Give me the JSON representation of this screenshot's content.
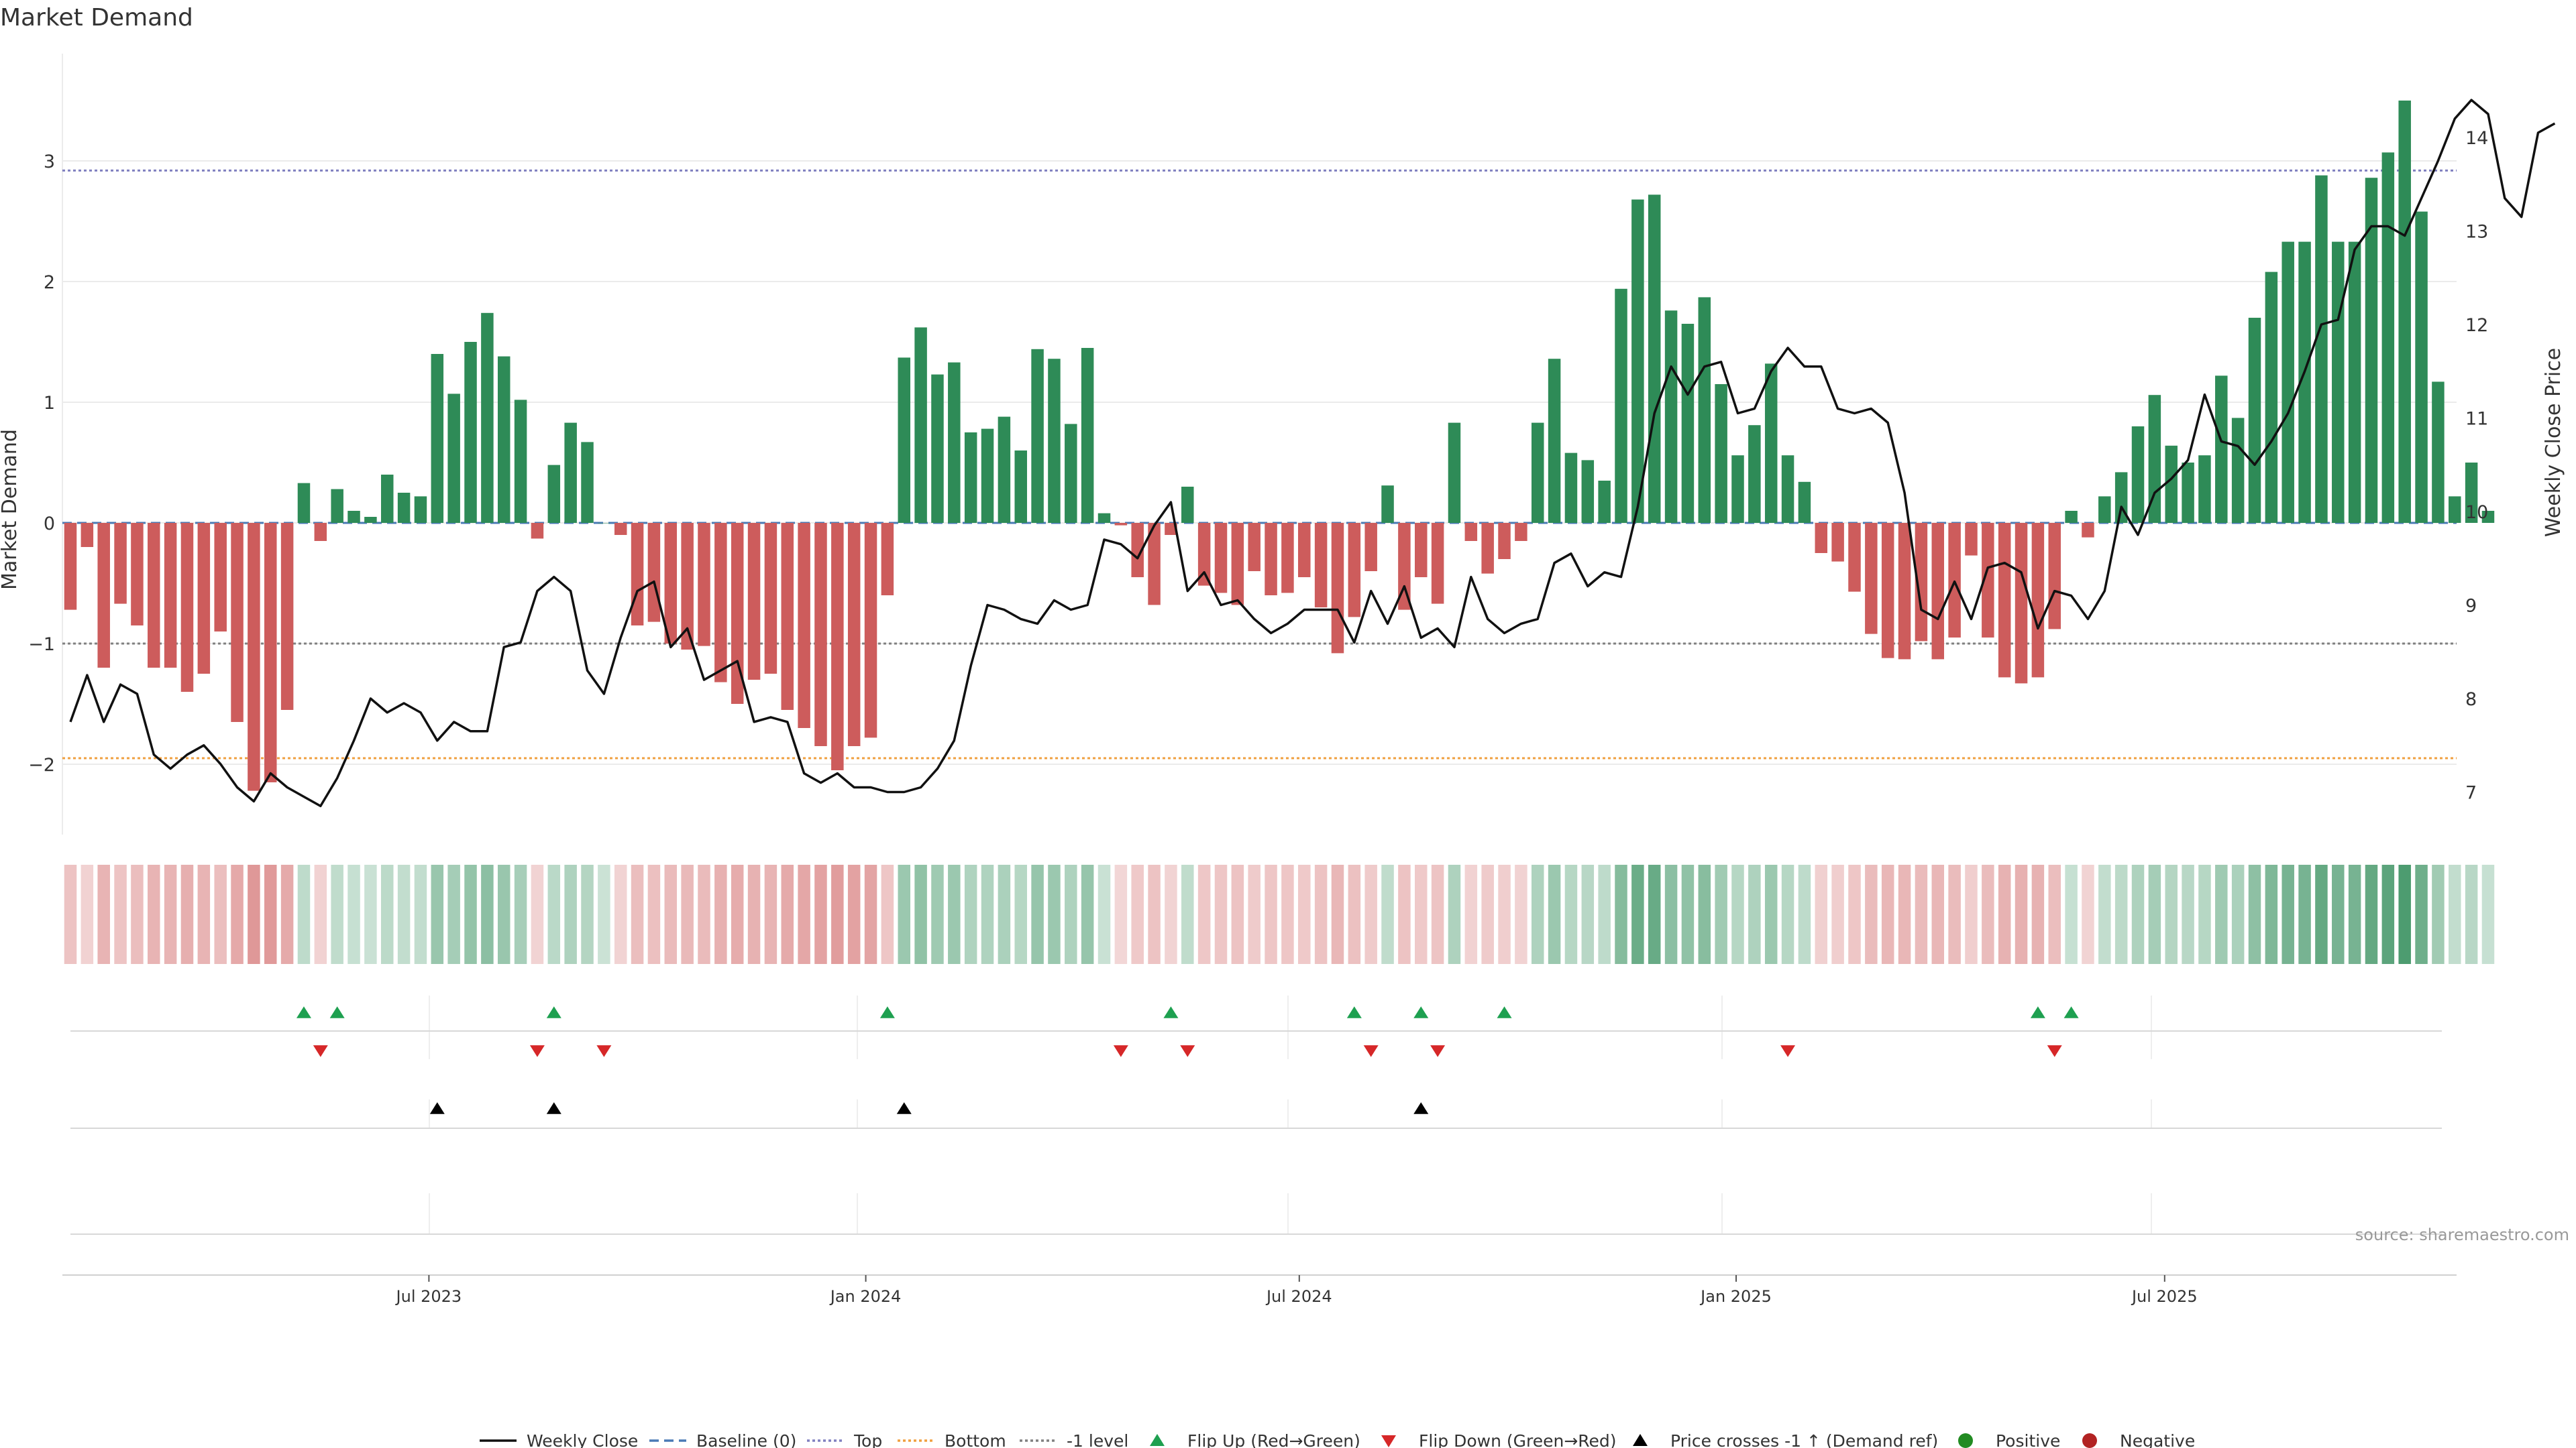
{
  "chart_data": {
    "type": "bar",
    "title": "Market Demand",
    "ylabel": "Market Demand",
    "y2label": "Weekly Close Price",
    "ylim": [
      -2.5,
      3.8
    ],
    "y2lim": [
      6.5,
      15.0
    ],
    "yticks": [
      "3",
      "2",
      "1",
      "0",
      "−1",
      "−2"
    ],
    "yticks_values": [
      3,
      2,
      1,
      0,
      -1,
      -2
    ],
    "y2ticks": [
      "14",
      "13",
      "12",
      "11",
      "10",
      "9",
      "8",
      "7"
    ],
    "y2ticks_values": [
      14,
      13,
      12,
      11,
      10,
      9,
      8,
      7
    ],
    "xticks": [
      "Jul 2023",
      "Jan 2024",
      "Jul 2024",
      "Jan 2025",
      "Jul 2025"
    ],
    "xticks_week_index": [
      21.5,
      47.7,
      73.7,
      99.9,
      125.6
    ],
    "reference_lines": {
      "top": 2.92,
      "bottom": -1.95,
      "minus_one": -1.0,
      "baseline": 0
    },
    "values": [
      -0.72,
      -0.2,
      -1.2,
      -0.67,
      -0.85,
      -1.2,
      -1.2,
      -1.4,
      -1.25,
      -0.9,
      -1.65,
      -2.22,
      -2.15,
      -1.55,
      0.33,
      -0.15,
      0.28,
      0.1,
      0.05,
      0.4,
      0.25,
      0.22,
      1.4,
      1.07,
      1.5,
      1.74,
      1.38,
      1.02,
      -0.13,
      0.48,
      0.83,
      0.67,
      0.0,
      -0.1,
      -0.85,
      -0.82,
      -1.0,
      -1.05,
      -1.02,
      -1.32,
      -1.5,
      -1.3,
      -1.25,
      -1.55,
      -1.7,
      -1.85,
      -2.05,
      -1.85,
      -1.78,
      -0.6,
      1.37,
      1.62,
      1.23,
      1.33,
      0.75,
      0.78,
      0.88,
      0.6,
      1.44,
      1.36,
      0.82,
      1.45,
      0.08,
      -0.02,
      -0.45,
      -0.68,
      -0.1,
      0.3,
      -0.52,
      -0.58,
      -0.68,
      -0.4,
      -0.6,
      -0.58,
      -0.45,
      -0.7,
      -1.08,
      -0.78,
      -0.4,
      0.31,
      -0.72,
      -0.45,
      -0.67,
      0.83,
      -0.15,
      -0.42,
      -0.3,
      -0.15,
      0.83,
      1.36,
      0.58,
      0.52,
      0.35,
      1.94,
      2.68,
      2.72,
      1.76,
      1.65,
      1.87,
      1.15,
      0.56,
      0.81,
      1.32,
      0.56,
      0.34,
      -0.25,
      -0.32,
      -0.57,
      -0.92,
      -1.12,
      -1.13,
      -0.98,
      -1.13,
      -0.95,
      -0.27,
      -0.95,
      -1.28,
      -1.33,
      -1.28,
      -0.88,
      0.1,
      -0.12,
      0.22,
      0.42,
      0.8,
      1.06,
      0.64,
      0.5,
      0.56,
      1.22,
      0.87,
      1.7,
      2.08,
      2.33,
      2.33,
      2.88,
      2.33,
      2.33,
      2.86,
      3.07,
      3.5,
      2.58,
      1.17,
      0.22,
      0.5,
      0.1
    ],
    "weekly_close": [
      7.75,
      8.25,
      7.75,
      8.15,
      8.05,
      7.4,
      7.25,
      7.4,
      7.5,
      7.3,
      7.05,
      6.9,
      7.2,
      7.05,
      6.95,
      6.85,
      7.15,
      7.55,
      8.0,
      7.85,
      7.95,
      7.85,
      7.55,
      7.75,
      7.65,
      7.65,
      8.55,
      8.6,
      9.15,
      9.3,
      9.15,
      8.3,
      8.05,
      8.65,
      9.15,
      9.25,
      8.55,
      8.75,
      8.2,
      8.3,
      8.4,
      7.75,
      7.8,
      7.75,
      7.2,
      7.1,
      7.2,
      7.05,
      7.05,
      7.0,
      7.0,
      7.05,
      7.25,
      7.55,
      8.35,
      9.0,
      8.95,
      8.85,
      8.8,
      9.05,
      8.95,
      9.0,
      9.7,
      9.65,
      9.5,
      9.85,
      10.1,
      9.15,
      9.35,
      9.0,
      9.05,
      8.85,
      8.7,
      8.8,
      8.95,
      8.95,
      8.95,
      8.6,
      9.15,
      8.8,
      9.2,
      8.65,
      8.75,
      8.55,
      9.3,
      8.85,
      8.7,
      8.8,
      8.85,
      9.45,
      9.55,
      9.2,
      9.35,
      9.3,
      10.05,
      11.05,
      11.55,
      11.25,
      11.55,
      11.6,
      11.05,
      11.1,
      11.5,
      11.75,
      11.55,
      11.55,
      11.1,
      11.05,
      11.1,
      10.95,
      10.2,
      8.95,
      8.85,
      9.25,
      8.85,
      9.4,
      9.45,
      9.35,
      8.75,
      9.15,
      9.1,
      8.85,
      9.15,
      10.05,
      9.75,
      10.2,
      10.35,
      10.55,
      11.25,
      10.75,
      10.7,
      10.5,
      10.75,
      11.05,
      11.5,
      12.0,
      12.05,
      12.8,
      13.05,
      13.05,
      12.95,
      13.35,
      13.75,
      14.2,
      14.4,
      14.25,
      13.35,
      13.15,
      14.05,
      14.15
    ],
    "flip_up_weeks": [
      14,
      16,
      29,
      49,
      66,
      77,
      81,
      86,
      118,
      120
    ],
    "flip_down_weeks": [
      15,
      28,
      32,
      63,
      67,
      78,
      82,
      103,
      119
    ],
    "price_cross_weeks": [
      22,
      29,
      50,
      81
    ],
    "legend": [
      "Weekly Close",
      "Baseline (0)",
      "Top",
      "Bottom",
      "-1 level",
      "Flip Up (Red→Green)",
      "Flip Down (Green→Red)",
      "Price crosses -1 ↑ (Demand ref)",
      "Positive",
      "Negative"
    ],
    "source": "source: sharemaestro.com"
  },
  "colors": {
    "positive": "#2e8b57",
    "negative": "#cd5c5c",
    "close": "#111111",
    "baseline": "#4a7ab5",
    "top": "#8080c0",
    "bottom": "#f0a040",
    "minus_one": "#808080",
    "flip_up": "#1ea050",
    "flip_down": "#d62728",
    "price_cross": "#000000",
    "legend_positive": "#228B22",
    "legend_negative": "#B22222"
  }
}
